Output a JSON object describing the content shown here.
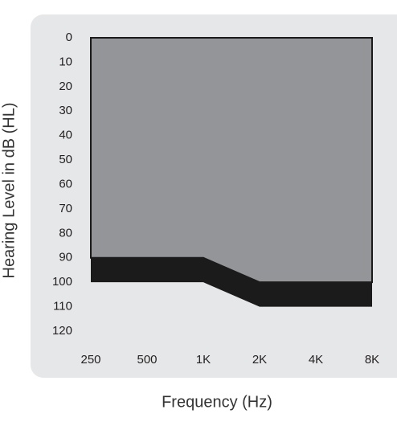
{
  "chart_data": {
    "type": "band",
    "x_title": "Frequency (Hz)",
    "y_title": "Hearing Level in dB (HL)",
    "categories": [
      "250",
      "500",
      "1K",
      "2K",
      "4K",
      "8K"
    ],
    "band_top": [
      90,
      90,
      90,
      100,
      100,
      100
    ],
    "band_bottom": [
      100,
      100,
      100,
      110,
      110,
      110
    ],
    "band_color": "#1c1b1b",
    "area_color": "#939598",
    "panel_color": "#e6e7e8",
    "ylim": [
      0,
      120
    ],
    "y_inverted": true,
    "yticks": [
      0,
      10,
      20,
      30,
      40,
      50,
      60,
      70,
      80,
      90,
      100,
      110,
      120
    ]
  }
}
